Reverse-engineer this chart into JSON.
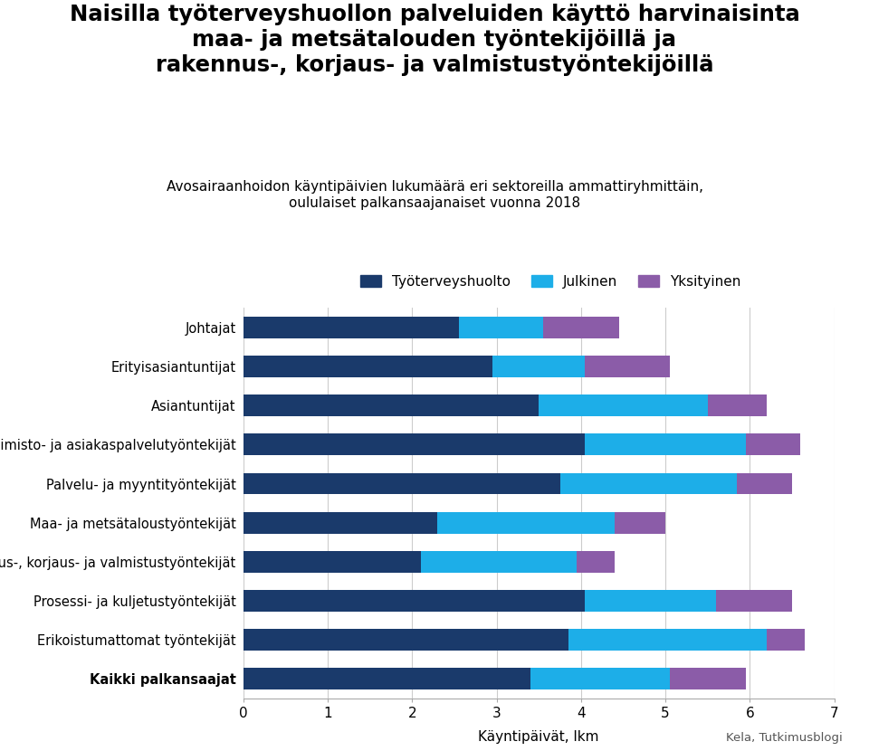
{
  "title_main": "Naisilla työterveyshuollon palveluiden käyttö harvinaisinta\nmaa- ja metsätalouden työntekijöillä ja\nrakennus-, korjaus- ja valmistustyöntekijöillä",
  "subtitle": "Avosairaanhoidon käyntipäivien lukumäärä eri sektoreilla ammattiryhmittäin,\noululaiset palkansaajanaiset vuonna 2018",
  "xlabel": "Käyntipäivät, lkm",
  "categories": [
    "Johtajat",
    "Erityisasiantuntijat",
    "Asiantuntijat",
    "Toimisto- ja asiakaspalvelutyöntekijät",
    "Palvelu- ja myyntityöntekijät",
    "Maa- ja metsätaloustyöntekijät",
    "Rakennus-, korjaus- ja valmistustyöntekijät",
    "Prosessi- ja kuljetustyöntekijät",
    "Erikoistumattomat työntekijät",
    "Kaikki palkansaajat"
  ],
  "bold_categories": [
    "Kaikki palkansaajat"
  ],
  "tyoterveyshuolto": [
    2.55,
    2.95,
    3.5,
    4.05,
    3.75,
    2.3,
    2.1,
    4.05,
    3.85,
    3.4
  ],
  "julkinen": [
    1.0,
    1.1,
    2.0,
    1.9,
    2.1,
    2.1,
    1.85,
    1.55,
    2.35,
    1.65
  ],
  "yksityinen": [
    0.9,
    1.0,
    0.7,
    0.65,
    0.65,
    0.6,
    0.45,
    0.9,
    0.45,
    0.9
  ],
  "color_tyoterveyshuolto": "#1a3a6b",
  "color_julkinen": "#1daee8",
  "color_yksityinen": "#8b5ca8",
  "legend_labels": [
    "Työterveyshuolto",
    "Julkinen",
    "Yksityinen"
  ],
  "xlim": [
    0,
    7
  ],
  "xticks": [
    0,
    1,
    2,
    3,
    4,
    5,
    6,
    7
  ],
  "source": "Kela, Tutkimusblogi",
  "background_color": "#ffffff",
  "bar_height": 0.55
}
